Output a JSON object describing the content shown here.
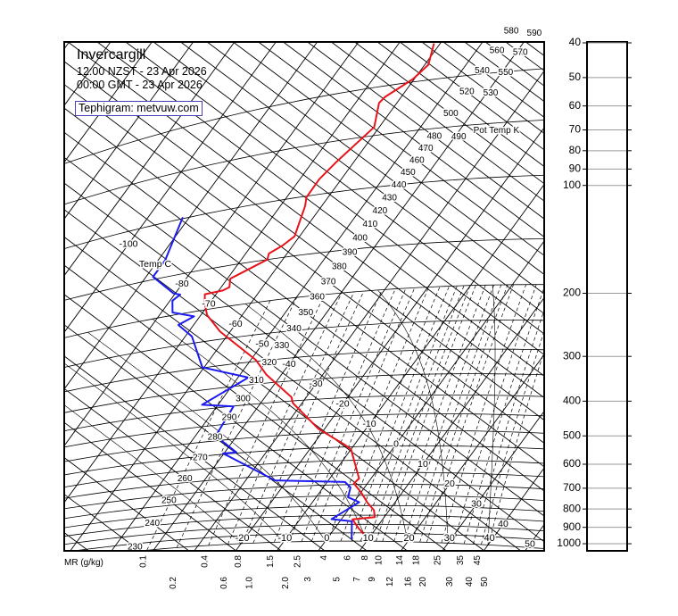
{
  "header": {
    "title": "Invercargill",
    "local_time": "12:00 NZST - 23 Apr 2026",
    "gmt_time": "00:00 GMT - 23 Apr 2026",
    "credit": "Tephigram: metvuw.com"
  },
  "chart_data": {
    "type": "line",
    "diagram": "tephigram",
    "axes": {
      "temp_label": "Temp C",
      "theta_label": "Pot Temp K",
      "mr_label": "MR (g/kg)"
    },
    "isotherm_labels": [
      -100,
      -80,
      -70,
      -60,
      -50,
      -40,
      -30,
      -20,
      -10,
      0,
      10,
      20,
      30,
      40,
      50
    ],
    "isotherm_base_labels": [
      "-20",
      "-10",
      "0",
      "10",
      "20",
      "30",
      "40"
    ],
    "theta_labels": [
      230,
      240,
      250,
      260,
      270,
      280,
      290,
      300,
      310,
      320,
      330,
      340,
      350,
      360,
      370,
      380,
      390,
      400,
      410,
      420,
      430,
      440,
      450,
      460,
      470,
      480,
      490,
      500,
      520,
      530,
      540,
      550,
      560,
      570,
      580,
      590
    ],
    "mixing_ratio_labels": [
      "0.1",
      "0.2",
      "0.4",
      "0.6",
      "0.8",
      "1.0",
      "1.5",
      "2.0",
      "2.5",
      "3",
      "4",
      "5",
      "6",
      "7",
      "8",
      "9",
      "10",
      "12",
      "14",
      "16",
      "18",
      "20",
      "25",
      "30",
      "35",
      "40",
      "45",
      "50"
    ],
    "pressure_axis": {
      "unit": "hPa",
      "scale": "log",
      "range": [
        40,
        1000
      ],
      "ticks": [
        40,
        50,
        60,
        70,
        80,
        90,
        100,
        200,
        300,
        400,
        500,
        600,
        700,
        800,
        900,
        1000
      ]
    },
    "colors": {
      "temperature": "#e8141b",
      "dewpoint": "#1c1cf0",
      "grid": "#000000"
    },
    "series": [
      {
        "key": "temperature",
        "points": [
          {
            "p": 981,
            "t": 9.6
          },
          {
            "p": 922,
            "t": 5.7
          },
          {
            "p": 872,
            "t": 2.7
          },
          {
            "p": 860,
            "t": 7.7
          },
          {
            "p": 824,
            "t": 6.3
          },
          {
            "p": 786,
            "t": 3.4
          },
          {
            "p": 737,
            "t": 0.1
          },
          {
            "p": 695,
            "t": -3.3
          },
          {
            "p": 674,
            "t": -2.9
          },
          {
            "p": 559,
            "t": -10.0
          },
          {
            "p": 543,
            "t": -12.2
          },
          {
            "p": 485,
            "t": -21.6
          },
          {
            "p": 406,
            "t": -32.2
          },
          {
            "p": 390,
            "t": -33.6
          },
          {
            "p": 331,
            "t": -43.6
          },
          {
            "p": 297,
            "t": -48.8
          },
          {
            "p": 237,
            "t": -62.4
          },
          {
            "p": 208,
            "t": -68.5
          },
          {
            "p": 191,
            "t": -71.1
          },
          {
            "p": 179,
            "t": -72.7
          },
          {
            "p": 178,
            "t": -69.0
          },
          {
            "p": 175,
            "t": -68.0
          },
          {
            "p": 165,
            "t": -69.3
          },
          {
            "p": 150,
            "t": -63.7
          },
          {
            "p": 144,
            "t": -64.4
          },
          {
            "p": 138,
            "t": -62.5
          },
          {
            "p": 131,
            "t": -61.2
          },
          {
            "p": 107,
            "t": -64.0
          },
          {
            "p": 101,
            "t": -65.2
          },
          {
            "p": 90,
            "t": -65.3
          },
          {
            "p": 81,
            "t": -64.2
          },
          {
            "p": 66,
            "t": -61.2
          },
          {
            "p": 56,
            "t": -64.3
          },
          {
            "p": 54,
            "t": -63.9
          },
          {
            "p": 49,
            "t": -60.3
          },
          {
            "p": 45,
            "t": -59.1
          },
          {
            "p": 39,
            "t": -61.5
          }
        ]
      },
      {
        "key": "dewpoint",
        "points": [
          {
            "p": 988,
            "t": 6.0
          },
          {
            "p": 883,
            "t": 2.9
          },
          {
            "p": 870,
            "t": -2.4
          },
          {
            "p": 783,
            "t": 1.3
          },
          {
            "p": 758,
            "t": -2.3
          },
          {
            "p": 713,
            "t": -3.4
          },
          {
            "p": 688,
            "t": -5.7
          },
          {
            "p": 670,
            "t": -22.9
          },
          {
            "p": 547,
            "t": -40.2
          },
          {
            "p": 547,
            "t": -37.2
          },
          {
            "p": 484,
            "t": -45.1
          },
          {
            "p": 401,
            "t": -46.0
          },
          {
            "p": 387,
            "t": -53.9
          },
          {
            "p": 333,
            "t": -47.5
          },
          {
            "p": 299,
            "t": -60.4
          },
          {
            "p": 238,
            "t": -68.4
          },
          {
            "p": 216,
            "t": -73.7
          },
          {
            "p": 207,
            "t": -71.4
          },
          {
            "p": 196,
            "t": -77.3
          },
          {
            "p": 180,
            "t": -79.4
          },
          {
            "p": 174,
            "t": -78.6
          },
          {
            "p": 171,
            "t": -80.4
          },
          {
            "p": 147,
            "t": -88.3
          },
          {
            "p": 132.5,
            "t": -88.3
          },
          {
            "p": 99,
            "t": -91.6
          }
        ]
      }
    ]
  }
}
